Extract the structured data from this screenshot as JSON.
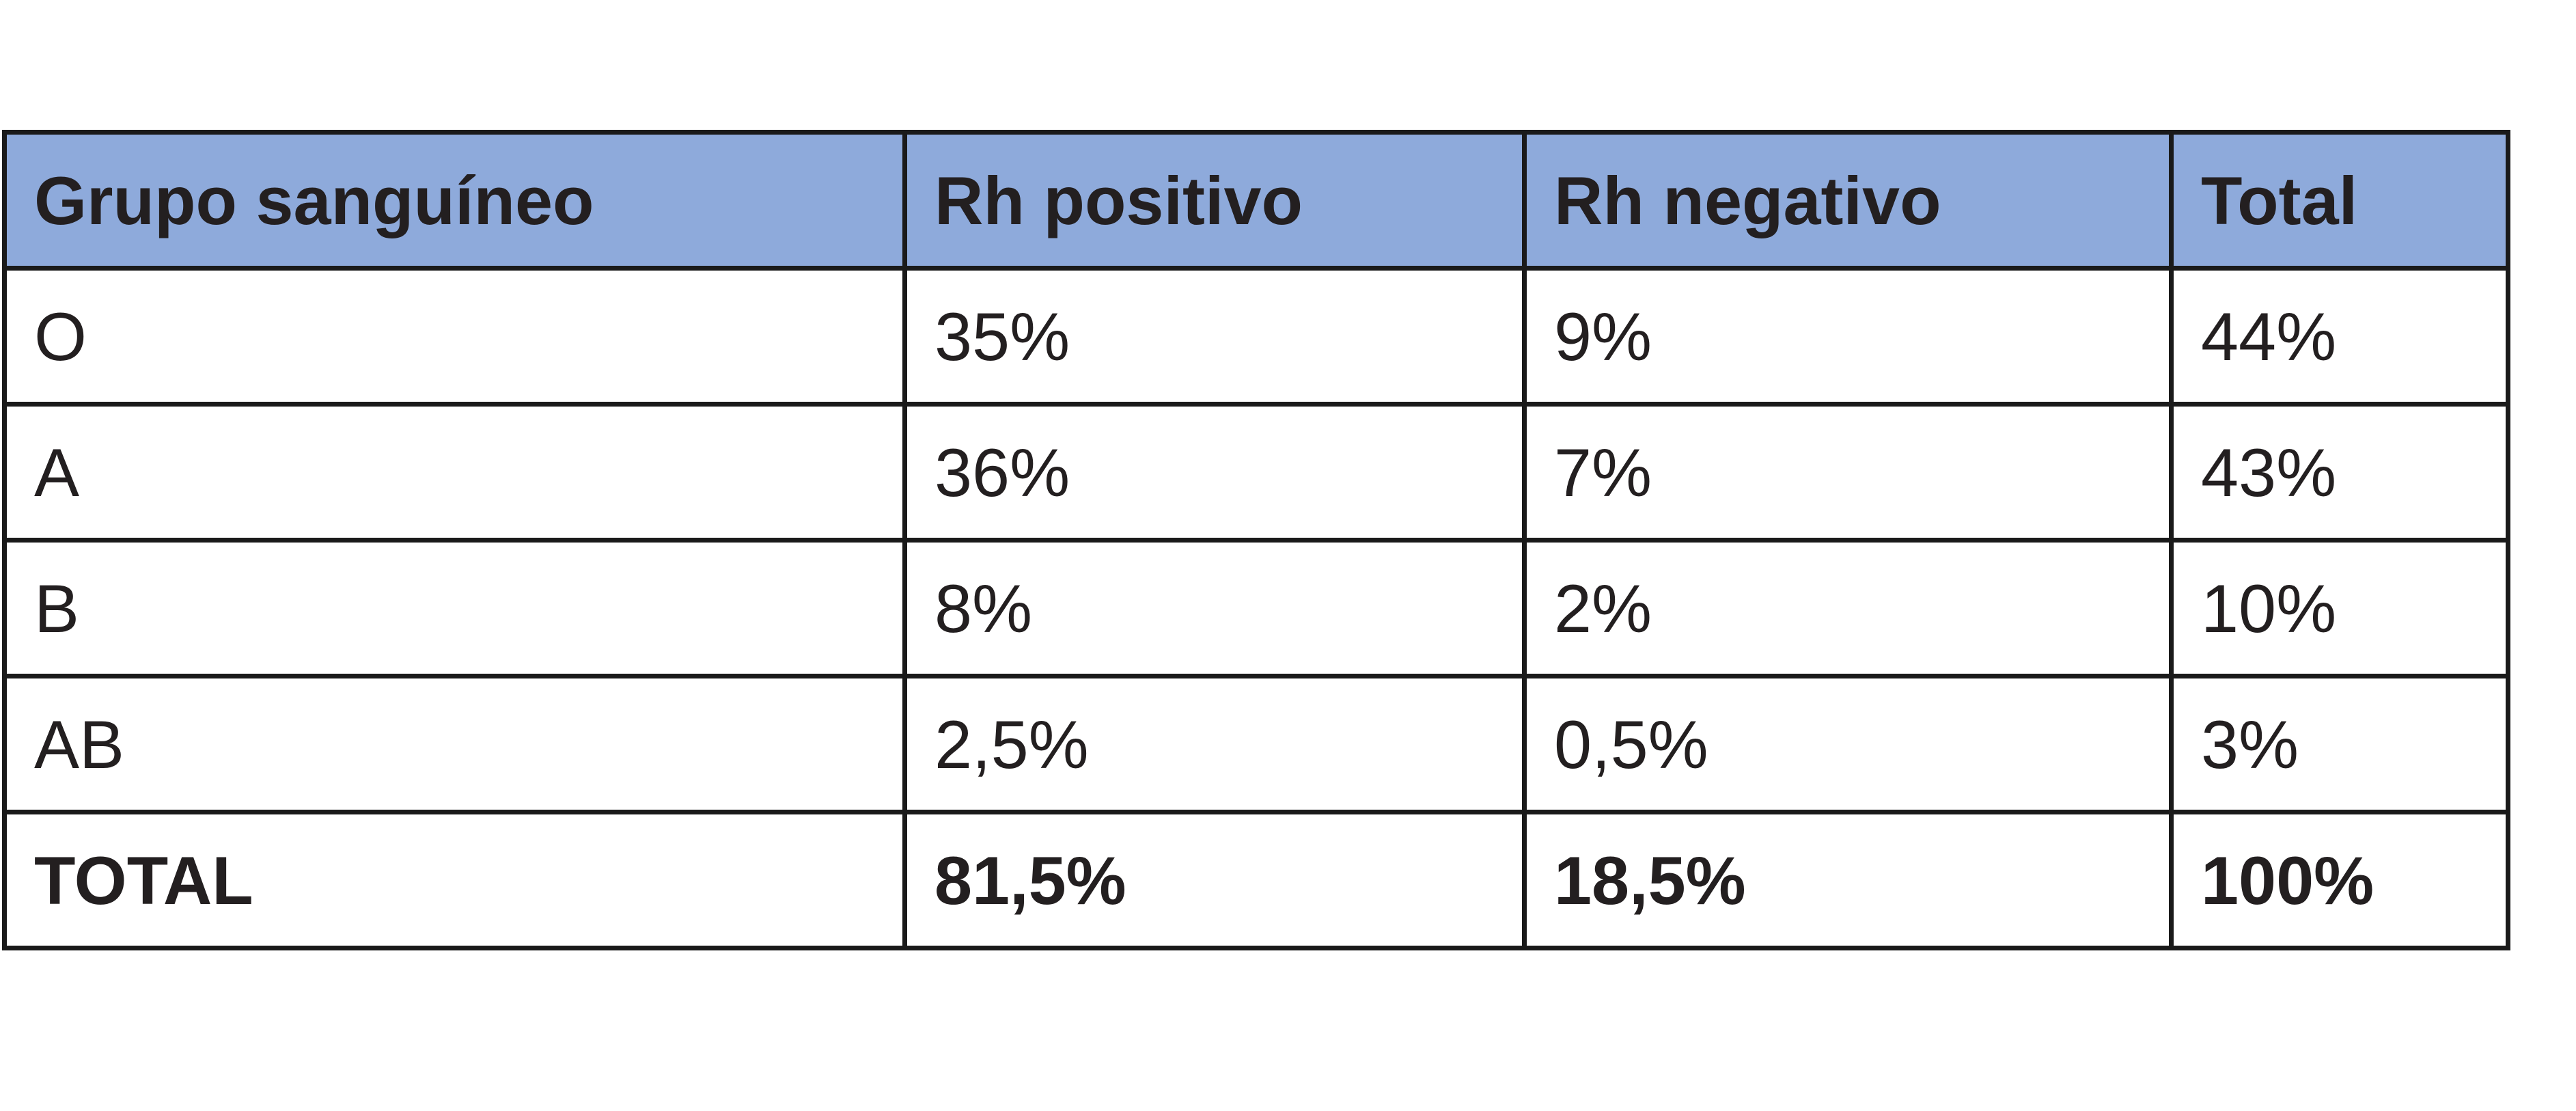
{
  "table": {
    "headers": [
      "Grupo sanguíneo",
      "Rh positivo",
      "Rh negativo",
      "Total"
    ],
    "rows": [
      [
        "O",
        "35%",
        "9%",
        "44%"
      ],
      [
        "A",
        "36%",
        "7%",
        "43%"
      ],
      [
        "B",
        "8%",
        "2%",
        "10%"
      ],
      [
        "AB",
        "2,5%",
        "0,5%",
        "3%"
      ]
    ],
    "total_row": [
      "TOTAL",
      "81,5%",
      "18,5%",
      "100%"
    ]
  },
  "colors": {
    "header_background": "#8eaadb",
    "border": "#1a1a1a",
    "text": "#231f20"
  }
}
